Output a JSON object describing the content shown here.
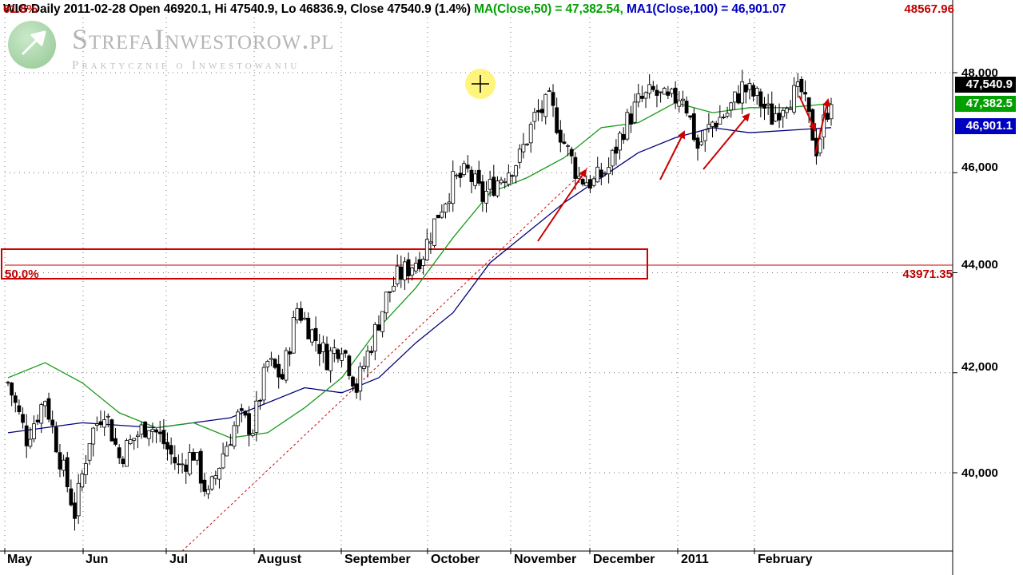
{
  "header": {
    "instrument": "WIG",
    "info": "Daily 2011-02-28 Open 46920.1, Hi 47540.9, Lo 46836.9, Close 47540.9 (1.4%)",
    "ma50_label": "MA(Close,50) = 47,382.54,",
    "ma100_label": "MA1(Close,100) = 46,901.07"
  },
  "fib": {
    "level_618_label": "61.8%",
    "level_618_value": "48567.96",
    "level_50_label": "50.0%",
    "level_50_value": "43971.35"
  },
  "logo": {
    "title": "StrefaInwestorow.pl",
    "subtitle": "Praktycznie o Inwestowaniu"
  },
  "badges": {
    "close": "47,540.9",
    "ma50": "47,382.5",
    "ma100": "46,901.1"
  },
  "colors": {
    "close_badge": "#000000",
    "ma50_badge": "#00a000",
    "ma100_badge": "#0000c0",
    "ma50_line": "#1a9a1a",
    "ma100_line": "#00007a",
    "annotations": "#cc0000",
    "candle": "#000000"
  },
  "chart_data": {
    "type": "candlestick",
    "ylim": [
      38400,
      48800
    ],
    "yticks": [
      "40,000",
      "42,000",
      "44,000",
      "46,000",
      "48,000"
    ],
    "ytick_values": [
      40000,
      42000,
      44000,
      46000,
      48000
    ],
    "months": [
      "May",
      "Jun",
      "Jul",
      "August",
      "September",
      "October",
      "November",
      "December",
      "2011",
      "February"
    ],
    "close_path": [
      [
        0,
        41800
      ],
      [
        5,
        40700
      ],
      [
        10,
        41500
      ],
      [
        14,
        40300
      ],
      [
        18,
        39200
      ],
      [
        22,
        40700
      ],
      [
        26,
        41300
      ],
      [
        30,
        40300
      ],
      [
        34,
        40700
      ],
      [
        38,
        41000
      ],
      [
        42,
        40600
      ],
      [
        46,
        40100
      ],
      [
        50,
        40400
      ],
      [
        54,
        39500
      ],
      [
        58,
        40400
      ],
      [
        62,
        41100
      ],
      [
        66,
        40900
      ],
      [
        70,
        42200
      ],
      [
        74,
        41900
      ],
      [
        78,
        43300
      ],
      [
        82,
        42800
      ],
      [
        86,
        42300
      ],
      [
        90,
        42600
      ],
      [
        94,
        41700
      ],
      [
        98,
        42600
      ],
      [
        102,
        43500
      ],
      [
        105,
        43900
      ],
      [
        108,
        44100
      ],
      [
        112,
        44400
      ],
      [
        116,
        45200
      ],
      [
        120,
        45800
      ],
      [
        124,
        46000
      ],
      [
        128,
        45500
      ],
      [
        130,
        45700
      ],
      [
        134,
        46000
      ],
      [
        138,
        46300
      ],
      [
        142,
        47100
      ],
      [
        146,
        47400
      ],
      [
        150,
        46600
      ],
      [
        154,
        45900
      ],
      [
        158,
        45800
      ],
      [
        162,
        46100
      ],
      [
        166,
        46900
      ],
      [
        170,
        47400
      ],
      [
        174,
        47600
      ],
      [
        178,
        47400
      ],
      [
        182,
        47600
      ],
      [
        186,
        46500
      ],
      [
        190,
        47000
      ],
      [
        194,
        47200
      ],
      [
        198,
        47700
      ],
      [
        202,
        47500
      ],
      [
        206,
        47100
      ],
      [
        210,
        47500
      ],
      [
        214,
        47600
      ],
      [
        218,
        46500
      ],
      [
        220,
        47000
      ],
      [
        222,
        47540
      ]
    ],
    "ma50_path": [
      [
        0,
        41900
      ],
      [
        10,
        42200
      ],
      [
        20,
        41800
      ],
      [
        30,
        41200
      ],
      [
        40,
        40900
      ],
      [
        50,
        41000
      ],
      [
        60,
        40700
      ],
      [
        70,
        40800
      ],
      [
        80,
        41300
      ],
      [
        90,
        41900
      ],
      [
        100,
        42900
      ],
      [
        110,
        43700
      ],
      [
        120,
        44700
      ],
      [
        130,
        45600
      ],
      [
        140,
        45900
      ],
      [
        150,
        46300
      ],
      [
        160,
        46900
      ],
      [
        170,
        47000
      ],
      [
        180,
        47400
      ],
      [
        190,
        47200
      ],
      [
        200,
        47300
      ],
      [
        210,
        47300
      ],
      [
        222,
        47382
      ]
    ],
    "ma100_path": [
      [
        0,
        40800
      ],
      [
        20,
        41000
      ],
      [
        40,
        40900
      ],
      [
        60,
        41100
      ],
      [
        80,
        41700
      ],
      [
        90,
        41600
      ],
      [
        100,
        41900
      ],
      [
        110,
        42600
      ],
      [
        120,
        43200
      ],
      [
        130,
        44200
      ],
      [
        140,
        44800
      ],
      [
        150,
        45400
      ],
      [
        160,
        45900
      ],
      [
        170,
        46400
      ],
      [
        180,
        46700
      ],
      [
        190,
        46900
      ],
      [
        200,
        46800
      ],
      [
        222,
        46901
      ]
    ]
  }
}
